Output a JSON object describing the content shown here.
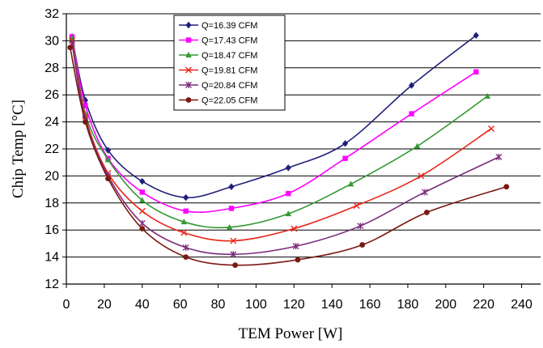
{
  "chart_data": {
    "type": "line",
    "xlabel": "TEM Power [W]",
    "ylabel": "Chip Temp [°C]",
    "xlim": [
      0,
      250
    ],
    "ylim": [
      12,
      32
    ],
    "xticks": [
      0,
      20,
      40,
      60,
      80,
      100,
      120,
      140,
      160,
      180,
      200,
      220,
      240
    ],
    "yticks": [
      12,
      14,
      16,
      18,
      20,
      22,
      24,
      26,
      28,
      30,
      32
    ],
    "grid": "horizontal",
    "legend_position": "top-left",
    "series": [
      {
        "name": "Q=16.39 CFM",
        "color": "#1f1f7a",
        "marker": "diamond",
        "x": [
          3,
          10,
          22,
          40,
          63,
          87,
          117,
          147,
          182,
          216
        ],
        "y": [
          30.3,
          25.6,
          21.9,
          19.6,
          18.4,
          19.2,
          20.6,
          22.4,
          26.7,
          30.4
        ]
      },
      {
        "name": "Q=17.43 CFM",
        "color": "#ff00ff",
        "marker": "square",
        "x": [
          3,
          10,
          22,
          40,
          63,
          87,
          117,
          147,
          182,
          216
        ],
        "y": [
          30.3,
          25.2,
          21.3,
          18.8,
          17.4,
          17.6,
          18.7,
          21.3,
          24.6,
          27.7
        ]
      },
      {
        "name": "Q=18.47 CFM",
        "color": "#339933",
        "marker": "triangle",
        "x": [
          3,
          10,
          22,
          40,
          62,
          86,
          117,
          150,
          185,
          222
        ],
        "y": [
          30.2,
          24.6,
          21.2,
          18.2,
          16.6,
          16.2,
          17.2,
          19.4,
          22.2,
          25.9
        ]
      },
      {
        "name": "Q=19.81 CFM",
        "color": "#e8251a",
        "marker": "x",
        "x": [
          3,
          10,
          22,
          40,
          62,
          88,
          120,
          153,
          187,
          224
        ],
        "y": [
          30.0,
          24.4,
          20.2,
          17.4,
          15.8,
          15.2,
          16.1,
          17.8,
          20.0,
          23.5
        ]
      },
      {
        "name": "Q=20.84 CFM",
        "color": "#7b2c7d",
        "marker": "star",
        "x": [
          3,
          10,
          22,
          40,
          63,
          88,
          121,
          155,
          189,
          228
        ],
        "y": [
          29.8,
          24.2,
          20.0,
          16.5,
          14.7,
          14.2,
          14.8,
          16.3,
          18.8,
          21.4
        ]
      },
      {
        "name": "Q=22.05 CFM",
        "color": "#7a1a12",
        "marker": "circle",
        "x": [
          2,
          10,
          22,
          40,
          63,
          89,
          122,
          156,
          190,
          232
        ],
        "y": [
          29.5,
          24.0,
          19.8,
          16.1,
          14.0,
          13.4,
          13.8,
          14.9,
          17.3,
          19.2
        ]
      }
    ]
  }
}
